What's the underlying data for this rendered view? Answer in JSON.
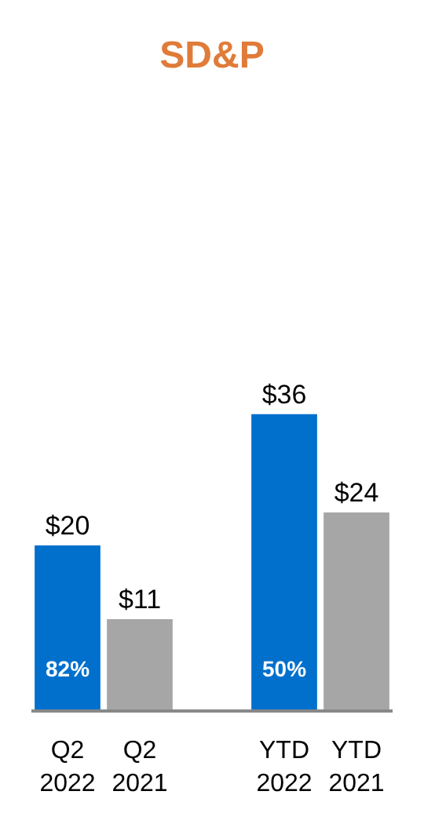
{
  "chart_data": {
    "type": "bar",
    "title": "SD&P",
    "categories": [
      "Q2\n2022",
      "Q2\n2021",
      null,
      "YTD\n2022",
      "YTD\n2021"
    ],
    "values": [
      20,
      11,
      null,
      36,
      24
    ],
    "colors": [
      "#0070cc",
      "#a6a6a6",
      null,
      "#0070cc",
      "#a6a6a6"
    ],
    "value_labels": [
      "$20",
      "$11",
      null,
      "$36",
      "$24"
    ],
    "annotations": [
      "82%",
      "50%"
    ]
  }
}
